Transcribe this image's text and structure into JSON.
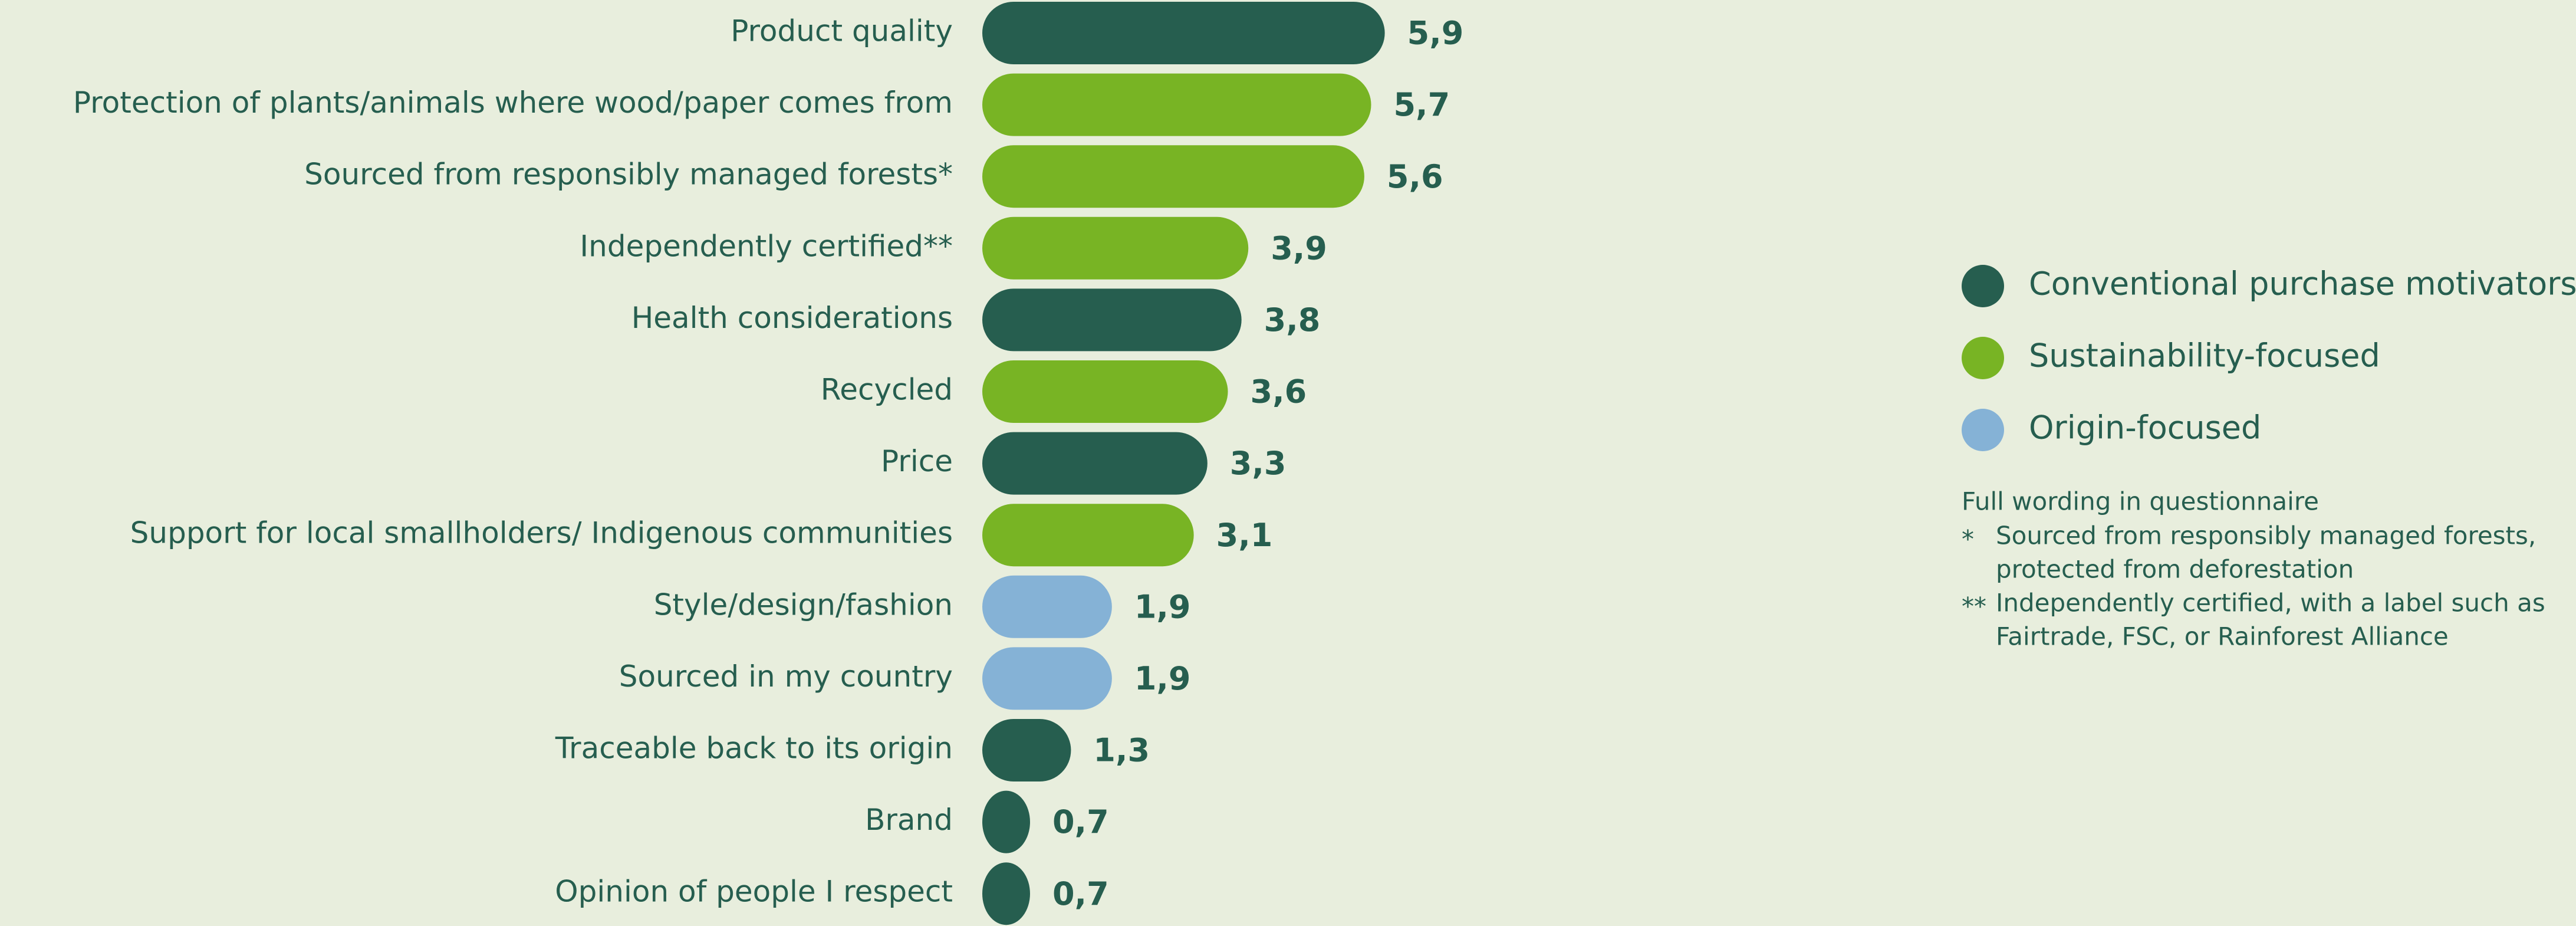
{
  "chart_data": {
    "type": "bar",
    "orientation": "horizontal",
    "categories": [
      "Product quality",
      "Protection of plants/animals where wood/paper comes from",
      "Sourced from responsibly managed forests*",
      "Independently certified**",
      "Health considerations",
      "Recycled",
      "Price",
      "Support for local smallholders/ Indigenous communities",
      "Style/design/fashion",
      "Sourced in my country",
      "Traceable back to its origin",
      "Brand",
      "Opinion of people I respect"
    ],
    "series": [
      {
        "name": "Conventional purchase motivators",
        "color": "#265e4f",
        "values": [
          5.9,
          null,
          null,
          null,
          3.8,
          null,
          3.3,
          null,
          null,
          null,
          1.3,
          0.7,
          0.7
        ],
        "value_labels": [
          "5,9",
          null,
          null,
          null,
          "3,8",
          null,
          "3,3",
          null,
          null,
          null,
          "1,3",
          "0,7",
          "0,7"
        ]
      },
      {
        "name": "Sustainability-focused",
        "color": "#78b424",
        "values": [
          null,
          5.7,
          5.6,
          3.9,
          null,
          3.6,
          null,
          3.1,
          null,
          null,
          null,
          null,
          null
        ],
        "value_labels": [
          null,
          "5,7",
          "5,6",
          "3,9",
          null,
          "3,6",
          null,
          "3,1",
          null,
          null,
          null,
          null,
          null
        ]
      },
      {
        "name": "Origin-focused",
        "color": "#85b2d6",
        "values": [
          null,
          null,
          null,
          null,
          null,
          null,
          null,
          null,
          1.9,
          1.9,
          null,
          null,
          null
        ],
        "value_labels": [
          null,
          null,
          null,
          null,
          null,
          null,
          null,
          null,
          "1,9",
          "1,9",
          null,
          null,
          null
        ]
      }
    ],
    "legend": "right",
    "notes": {
      "title": "Full wording in questionnaire",
      "items": [
        {
          "marker": "*",
          "lines": [
            "Sourced from responsibly managed forests,",
            "protected from deforestation"
          ]
        },
        {
          "marker": "**",
          "lines": [
            "Independently certified, with a label such as",
            "Fairtrade, FSC, or Rainforest Alliance"
          ]
        }
      ]
    }
  }
}
